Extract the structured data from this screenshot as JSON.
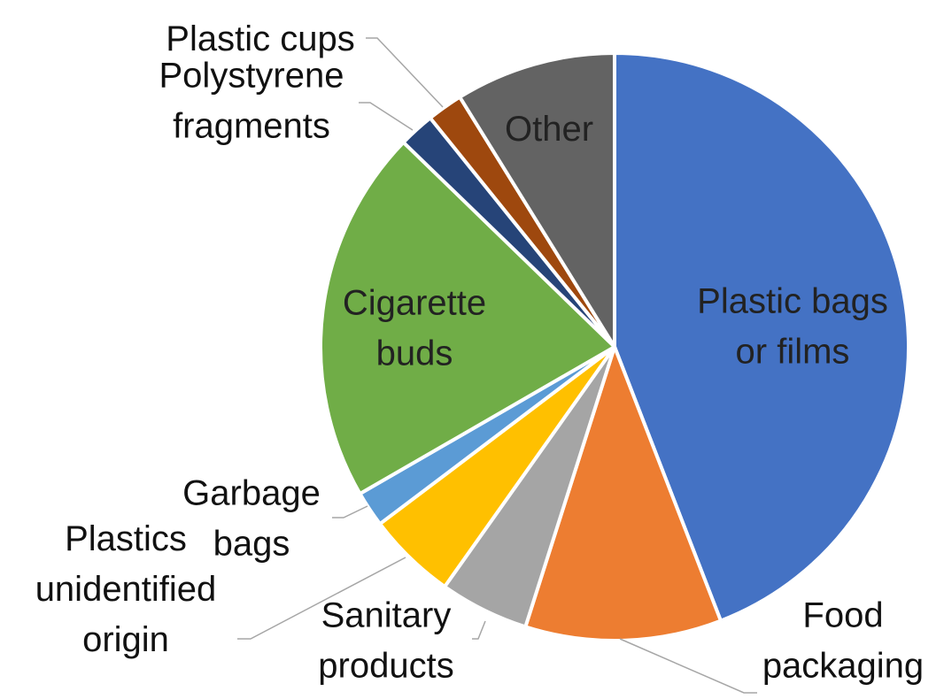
{
  "chart_data": {
    "type": "pie",
    "start_angle_deg": 0,
    "direction": "clockwise",
    "slices": [
      {
        "label": [
          "Plastic bags",
          "or films"
        ],
        "value": 45,
        "color": "#4472C4"
      },
      {
        "label": [
          "Food",
          "packaging"
        ],
        "value": 11,
        "color": "#ED7D31"
      },
      {
        "label": [
          "Sanitary",
          "products"
        ],
        "value": 5,
        "color": "#A5A5A5"
      },
      {
        "label": [
          "Plastics",
          "unidentified",
          "origin"
        ],
        "value": 5,
        "color": "#FFC000"
      },
      {
        "label": [
          "Garbage",
          "bags"
        ],
        "value": 2,
        "color": "#5B9BD5"
      },
      {
        "label": [
          "Cigarette",
          "buds"
        ],
        "value": 21,
        "color": "#70AD47"
      },
      {
        "label": [
          "Polystyrene",
          "fragments"
        ],
        "value": 2,
        "color": "#264478"
      },
      {
        "label": [
          "Plastic cups"
        ],
        "value": 2,
        "color": "#9E480E"
      },
      {
        "label": [
          "Other"
        ],
        "value": 9,
        "color": "#636363"
      }
    ]
  }
}
